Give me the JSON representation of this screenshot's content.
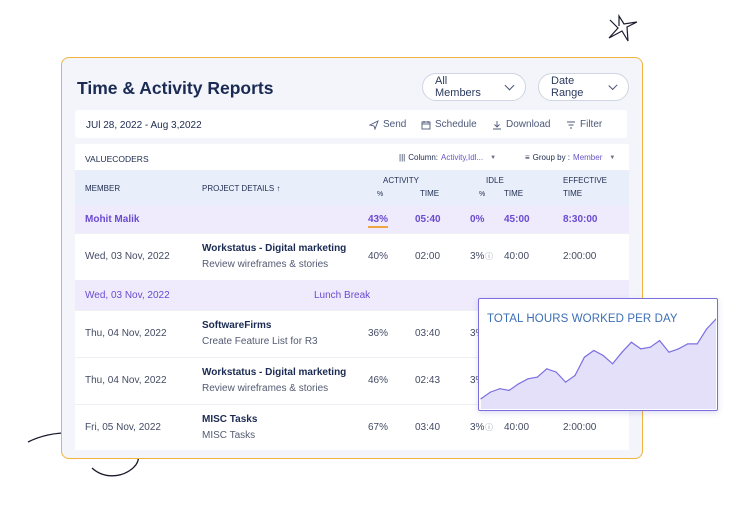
{
  "header": {
    "title": "Time & Activity Reports",
    "members_label": "All Members",
    "date_range_label": "Date Range"
  },
  "toolbar": {
    "date_range": "JUl 28, 2022 - Aug 3,2022",
    "send": "Send",
    "schedule": "Schedule",
    "download": "Download",
    "filter": "Filter"
  },
  "panel": {
    "org": "VALUECODERS",
    "column_label": "Column:",
    "column_value": "Activity,Idl...",
    "group_label": "Group by :",
    "group_value": "Member"
  },
  "columns": {
    "member": "MEMBER",
    "project": "PROJECT DETAILS ↑",
    "activity": "ACTIVITY",
    "activity_pct": "%",
    "activity_time": "TIME",
    "idle": "IDLE",
    "idle_pct": "%",
    "idle_time": "TIME",
    "effective": "EFFECTIVE",
    "effective_time": "TIME"
  },
  "summary": {
    "name": "Mohit Malik",
    "activity_pct": "43%",
    "activity_time": "05:40",
    "idle_pct": "0%",
    "idle_time": "45:00",
    "effective_time": "8:30:00"
  },
  "rows": [
    {
      "date": "Wed, 03 Nov, 2022",
      "project": "Workstatus - Digital marketing",
      "task": "Review wireframes & stories",
      "activity_pct": "40%",
      "activity_time": "02:00",
      "idle_pct": "3%",
      "idle_time": "40:00",
      "effective_time": "2:00:00"
    },
    {
      "date": "Thu, 04 Nov, 2022",
      "project": "SoftwareFirms",
      "task": "Create Feature List for R3",
      "activity_pct": "36%",
      "activity_time": "03:40",
      "idle_pct": "3%"
    },
    {
      "date": "Thu, 04 Nov, 2022",
      "project": "Workstatus - Digital marketing",
      "task": "Review wireframes & stories",
      "activity_pct": "46%",
      "activity_time": "02:43",
      "idle_pct": "3%"
    },
    {
      "date": "Fri, 05 Nov, 2022",
      "project": "MISC Tasks",
      "task": "MISC Tasks",
      "activity_pct": "67%",
      "activity_time": "03:40",
      "idle_pct": "3%",
      "idle_time": "40:00",
      "effective_time": "2:00:00"
    }
  ],
  "break_row": {
    "date": "Wed, 03 Nov, 2022",
    "label": "Lunch Break"
  },
  "chart_data": {
    "type": "area",
    "title": "TOTAL HOURS WORKED PER DAY",
    "values": [
      5,
      9,
      11,
      10,
      14,
      17,
      18,
      23,
      21,
      15,
      19,
      30,
      34,
      31,
      26,
      33,
      39,
      35,
      36,
      40,
      33,
      35,
      38,
      38,
      47,
      53
    ]
  },
  "colors": {
    "accent": "#6a4bd0",
    "card_border": "#f0b43c",
    "chart_border": "#7b6fe0",
    "chart_fill": "#e4e0fa",
    "chart_title": "#3d6fb6"
  }
}
